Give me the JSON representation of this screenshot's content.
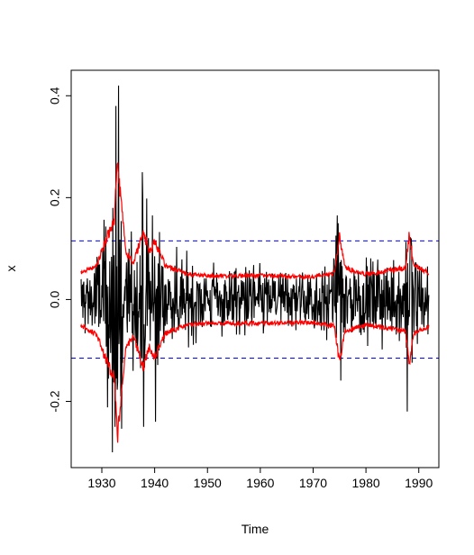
{
  "chart_data": {
    "type": "line",
    "title": "",
    "xlabel": "Time",
    "ylabel": "x",
    "xlim": [
      1924.2,
      1993.8
    ],
    "ylim": [
      -0.33,
      0.45
    ],
    "x_ticks": [
      1930,
      1940,
      1950,
      1960,
      1970,
      1980,
      1990
    ],
    "x_tick_labels": [
      "1930",
      "1940",
      "1950",
      "1960",
      "1970",
      "1980",
      "1990"
    ],
    "y_ticks": [
      -0.2,
      0.0,
      0.2,
      0.4
    ],
    "y_tick_labels": [
      "-0.2",
      "0.0",
      "0.2",
      "0.4"
    ],
    "grid": false,
    "x_range": [
      1926,
      1991.9
    ],
    "n_points": 792,
    "reference_lines": {
      "values": [
        0.115,
        -0.115
      ],
      "color": "#0000ff",
      "style": "dashed"
    },
    "series": [
      {
        "color": "#000000",
        "description": "monthly series, amplitude approx. +/-0.1 with large spikes in the early 1930s",
        "spikes": [
          {
            "x": 1932.0,
            "y": -0.3
          },
          {
            "x": 1932.5,
            "y": -0.25
          },
          {
            "x": 1932.7,
            "y": 0.38
          },
          {
            "x": 1933.2,
            "y": 0.42
          },
          {
            "x": 1933.6,
            "y": -0.19
          },
          {
            "x": 1935.9,
            "y": -0.14
          },
          {
            "x": 1937.7,
            "y": 0.25
          },
          {
            "x": 1937.9,
            "y": -0.25
          },
          {
            "x": 1939.6,
            "y": 0.165
          },
          {
            "x": 1940.2,
            "y": -0.24
          },
          {
            "x": 1974.6,
            "y": 0.165
          },
          {
            "x": 1987.8,
            "y": -0.22
          },
          {
            "x": 1988.6,
            "y": 0.12
          }
        ]
      },
      {
        "color": "#ff0000",
        "description": "upper volatility band, approx. +0.045 baseline, up to 0.27 around 1933",
        "envelope": [
          [
            1926,
            0.05
          ],
          [
            1929,
            0.065
          ],
          [
            1931,
            0.12
          ],
          [
            1932.4,
            0.15
          ],
          [
            1932.9,
            0.265
          ],
          [
            1933.5,
            0.2
          ],
          [
            1934.5,
            0.09
          ],
          [
            1936,
            0.07
          ],
          [
            1937.8,
            0.13
          ],
          [
            1939,
            0.09
          ],
          [
            1940,
            0.11
          ],
          [
            1942,
            0.065
          ],
          [
            1946,
            0.048
          ],
          [
            1950,
            0.045
          ],
          [
            1960,
            0.045
          ],
          [
            1970,
            0.043
          ],
          [
            1974,
            0.05
          ],
          [
            1975,
            0.12
          ],
          [
            1976,
            0.06
          ],
          [
            1980,
            0.048
          ],
          [
            1987.5,
            0.06
          ],
          [
            1988.2,
            0.125
          ],
          [
            1989,
            0.065
          ],
          [
            1992,
            0.05
          ]
        ]
      },
      {
        "color": "#ff0000",
        "description": "lower volatility band, mirror of the upper band",
        "envelope": [
          [
            1926,
            -0.05
          ],
          [
            1929,
            -0.065
          ],
          [
            1931,
            -0.12
          ],
          [
            1932.4,
            -0.15
          ],
          [
            1932.9,
            -0.265
          ],
          [
            1933.5,
            -0.2
          ],
          [
            1934.5,
            -0.09
          ],
          [
            1936,
            -0.07
          ],
          [
            1937.8,
            -0.13
          ],
          [
            1939,
            -0.09
          ],
          [
            1940,
            -0.11
          ],
          [
            1942,
            -0.065
          ],
          [
            1946,
            -0.048
          ],
          [
            1950,
            -0.045
          ],
          [
            1960,
            -0.045
          ],
          [
            1970,
            -0.043
          ],
          [
            1974,
            -0.05
          ],
          [
            1975,
            -0.12
          ],
          [
            1976,
            -0.06
          ],
          [
            1980,
            -0.048
          ],
          [
            1987.5,
            -0.06
          ],
          [
            1988.2,
            -0.125
          ],
          [
            1989,
            -0.065
          ],
          [
            1992,
            -0.05
          ]
        ]
      }
    ]
  }
}
